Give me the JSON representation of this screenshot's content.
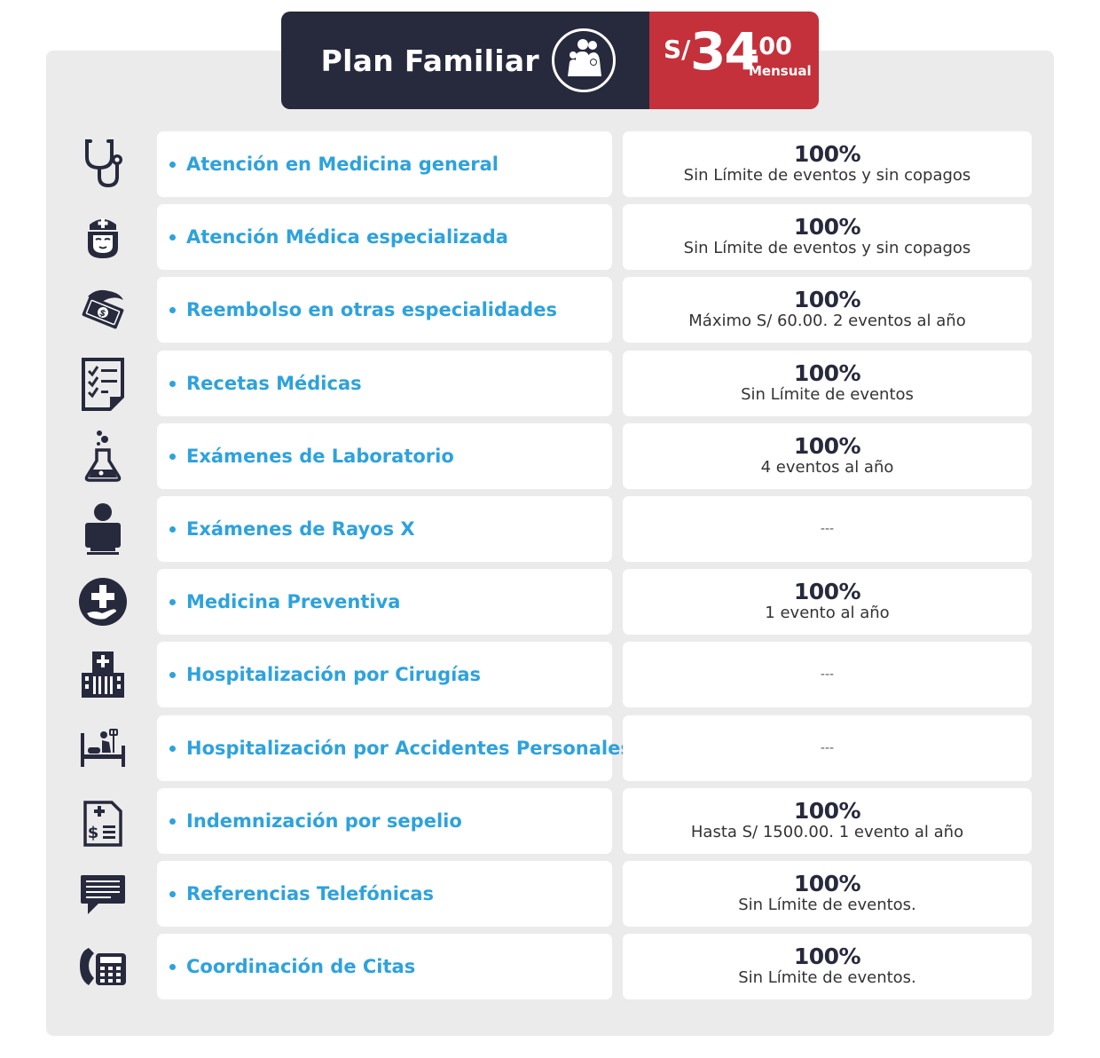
{
  "header": {
    "title": "Plan Familiar",
    "icon": "family-icon",
    "currency": "S/",
    "amount": "34",
    "cents": ".00",
    "period": "Mensual",
    "colors": {
      "dark": "#27293d",
      "red": "#c4313a",
      "accent": "#2ea2dc",
      "panel": "#ebebeb"
    }
  },
  "benefits": [
    {
      "icon": "stethoscope-icon",
      "name": "Atención en Medicina general",
      "percent": "100%",
      "detail": "Sin Límite de eventos y sin copagos"
    },
    {
      "icon": "nurse-icon",
      "name": "Atención Médica especializada",
      "percent": "100%",
      "detail": "Sin Límite de eventos y sin copagos"
    },
    {
      "icon": "money-hand-icon",
      "name": "Reembolso en otras especialidades",
      "percent": "100%",
      "detail": "Máximo S/ 60.00. 2 eventos al año"
    },
    {
      "icon": "checklist-icon",
      "name": "Recetas Médicas",
      "percent": "100%",
      "detail": "Sin Límite de eventos"
    },
    {
      "icon": "flask-icon",
      "name": "Exámenes de Laboratorio",
      "percent": "100%",
      "detail": "4 eventos al año"
    },
    {
      "icon": "xray-icon",
      "name": "Exámenes de Rayos X",
      "percent": "",
      "detail": "---"
    },
    {
      "icon": "cross-hand-icon",
      "name": "Medicina Preventiva",
      "percent": "100%",
      "detail": "1 evento al año"
    },
    {
      "icon": "hospital-icon",
      "name": "Hospitalización por Cirugías",
      "percent": "",
      "detail": "---"
    },
    {
      "icon": "hospital-bed-icon",
      "name": "Hospitalización por Accidentes Personales",
      "percent": "",
      "detail": "---"
    },
    {
      "icon": "invoice-icon",
      "name": "Indemnización por sepelio",
      "percent": "100%",
      "detail": "Hasta S/ 1500.00. 1 evento al año"
    },
    {
      "icon": "chat-icon",
      "name": "Referencias Telefónicas",
      "percent": "100%",
      "detail": "Sin Límite de eventos."
    },
    {
      "icon": "phone-icon",
      "name": "Coordinación de Citas",
      "percent": "100%",
      "detail": "Sin Límite de eventos."
    }
  ]
}
